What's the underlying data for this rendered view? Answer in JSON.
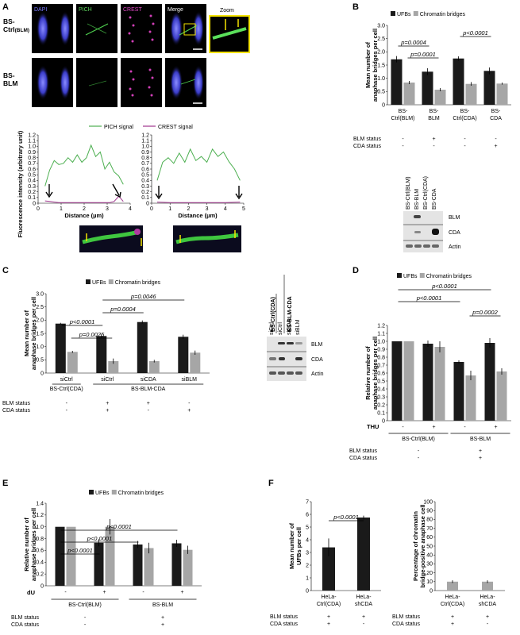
{
  "panels": {
    "A": {
      "letter": "A"
    },
    "B": {
      "letter": "B"
    },
    "C": {
      "letter": "C"
    },
    "D": {
      "letter": "D"
    },
    "E": {
      "letter": "E"
    },
    "F": {
      "letter": "F"
    }
  },
  "micro": {
    "channels": [
      "DAPI",
      "PICH",
      "CREST",
      "Merge",
      "Zoom"
    ],
    "rows": [
      {
        "label": "BS-",
        "sub": "Ctrl",
        "small": "(BLM)"
      },
      {
        "label": "BS-",
        "sub": "BLM",
        "small": ""
      }
    ]
  },
  "blots": {
    "B": {
      "lanes": [
        "BS-Ctrl(BLM)",
        "BS-BLM",
        "BS-Ctrl(CDA)",
        "BS-CDA"
      ],
      "bands": [
        "BLM",
        "CDA",
        "Actin"
      ]
    },
    "C": {
      "groups": [
        "BS-Ctrl(CDA)",
        "BS-BLM-CDA"
      ],
      "lanes": [
        "siCtrl",
        "siCtrl",
        "siCDA",
        "siBLM"
      ],
      "bands": [
        "BLM",
        "CDA",
        "Actin"
      ]
    }
  },
  "colors": {
    "ufb": "#1a1a1a",
    "chrom": "#a6a6a6",
    "pich": "#4caf50",
    "crest": "#a0368e"
  },
  "chart_data": [
    {
      "id": "A-left",
      "type": "line",
      "legend": [
        "PICH signal",
        "CREST signal"
      ],
      "xlabel": "Distance (µm)",
      "ylabel": "Fluorescence intensity (arbitrary unit)",
      "xlim": [
        0,
        4
      ],
      "ylim": [
        0,
        1.2
      ],
      "xticks": [
        "0",
        "1",
        "2",
        "3",
        "4"
      ],
      "yticks": [
        "0",
        "0.1",
        "0.2",
        "0.3",
        "0.4",
        "0.5",
        "0.6",
        "0.7",
        "0.8",
        "0.9",
        "1.0",
        "1.1",
        "1.2"
      ],
      "series": [
        {
          "name": "PICH signal",
          "x": [
            0.3,
            0.5,
            0.7,
            0.9,
            1.1,
            1.3,
            1.5,
            1.7,
            1.9,
            2.1,
            2.3,
            2.5,
            2.7,
            2.9,
            3.1,
            3.3,
            3.5,
            3.7
          ],
          "y": [
            0.3,
            0.58,
            0.75,
            0.68,
            0.7,
            0.8,
            0.72,
            0.85,
            0.72,
            0.8,
            1.02,
            0.82,
            0.9,
            0.6,
            0.72,
            0.55,
            0.48,
            0.33
          ]
        },
        {
          "name": "CREST signal",
          "x": [
            0.3,
            0.5,
            0.7,
            0.9,
            3.1,
            3.3,
            3.5,
            3.6,
            3.7
          ],
          "y": [
            0.04,
            0.03,
            0.02,
            0.01,
            0.01,
            0.03,
            0.12,
            0.08,
            0.03
          ]
        }
      ]
    },
    {
      "id": "A-right",
      "type": "line",
      "xlabel": "Distance (µm)",
      "xlim": [
        0,
        5
      ],
      "ylim": [
        0,
        1.2
      ],
      "xticks": [
        "0",
        "1",
        "2",
        "3",
        "4",
        "5"
      ],
      "yticks": [
        "0",
        "0.1",
        "0.2",
        "0.3",
        "0.4",
        "0.5",
        "0.6",
        "0.7",
        "0.8",
        "0.9",
        "1.0",
        "1.1",
        "1.2"
      ],
      "series": [
        {
          "name": "PICH signal",
          "x": [
            0.3,
            0.6,
            0.9,
            1.2,
            1.5,
            1.8,
            2.1,
            2.4,
            2.7,
            3.0,
            3.3,
            3.6,
            3.9,
            4.2,
            4.5,
            4.8
          ],
          "y": [
            0.4,
            0.72,
            0.8,
            0.7,
            0.88,
            0.72,
            0.95,
            0.75,
            0.82,
            0.72,
            0.95,
            0.82,
            0.9,
            0.73,
            0.6,
            0.4
          ]
        },
        {
          "name": "CREST signal",
          "x": [
            0.3,
            1,
            2,
            3,
            4,
            4.8
          ],
          "y": [
            0.02,
            0.01,
            0.01,
            0.01,
            0.01,
            0.02
          ]
        }
      ]
    },
    {
      "id": "B",
      "type": "bar",
      "legend": [
        "UFBs",
        "Chromatin bridges"
      ],
      "ylabel": "Mean number of anaphase bridges per cell",
      "ylim": [
        0,
        3
      ],
      "yticks": [
        "0",
        "0.5",
        "1.0",
        "1.5",
        "2.0",
        "2.5",
        "3.0"
      ],
      "categories": [
        [
          "BS-",
          "Ctrl(BLM)"
        ],
        [
          "BS-",
          "BLM"
        ],
        [
          "BS-",
          "Ctrl(CDA)"
        ],
        [
          "BS-",
          "CDA"
        ]
      ],
      "series": [
        {
          "name": "UFBs",
          "values": [
            1.72,
            1.25,
            1.75,
            1.28
          ],
          "errors": [
            0.12,
            0.13,
            0.08,
            0.13
          ]
        },
        {
          "name": "Chromatin bridges",
          "values": [
            0.84,
            0.57,
            0.79,
            0.8
          ],
          "errors": [
            0.06,
            0.06,
            0.07,
            0.04
          ]
        }
      ],
      "pvalues": [
        "p=0.0004",
        "p=0.0001",
        "p<0.0001"
      ],
      "status_rows": [
        {
          "label": "BLM status",
          "values": [
            "-",
            "+",
            "-",
            "-"
          ]
        },
        {
          "label": "CDA status",
          "values": [
            "-",
            "-",
            "-",
            "+"
          ]
        }
      ]
    },
    {
      "id": "C",
      "type": "bar",
      "legend": [
        "UFBs",
        "Chromatin bridges"
      ],
      "ylabel": "Mean number of anaphase bridges per cell",
      "ylim": [
        0,
        3
      ],
      "yticks": [
        "0",
        "0.5",
        "1.0",
        "1.5",
        "2.0",
        "2.5",
        "3.0"
      ],
      "categories": [
        "siCtrl",
        "siCtrl",
        "siCDA",
        "siBLM"
      ],
      "groups": [
        "BS-Ctrl(CDA)",
        "BS-BLM-CDA"
      ],
      "series": [
        {
          "name": "UFBs",
          "values": [
            1.87,
            1.4,
            1.93,
            1.37
          ],
          "errors": [
            0.03,
            0.06,
            0.06,
            0.08
          ]
        },
        {
          "name": "Chromatin bridges",
          "values": [
            0.8,
            0.45,
            0.45,
            0.77
          ],
          "errors": [
            0.04,
            0.1,
            0.05,
            0.08
          ]
        }
      ],
      "pvalues": [
        "p=0.0046",
        "p=0.0004",
        "p<0.0001",
        "p=0.0025"
      ],
      "status_rows": [
        {
          "label": "BLM status",
          "values": [
            "-",
            "+",
            "+",
            "-"
          ]
        },
        {
          "label": "CDA status",
          "values": [
            "-",
            "+",
            "-",
            "+"
          ]
        }
      ]
    },
    {
      "id": "D",
      "type": "bar",
      "legend": [
        "UFBs",
        "Chromatin bridges"
      ],
      "ylabel": "Relative number of anaphase bridges per cell",
      "ylim": [
        0,
        1.2
      ],
      "yticks": [
        "0",
        "0.1",
        "0.2",
        "0.3",
        "0.4",
        "0.5",
        "0.6",
        "0.7",
        "0.8",
        "0.9",
        "1.0",
        "1.1",
        "1.2"
      ],
      "categories": [
        "-",
        "+",
        "-",
        "+"
      ],
      "treatment_label": "THU",
      "groups": [
        "BS-Ctrl(BLM)",
        "BS-BLM"
      ],
      "series": [
        {
          "name": "UFBs",
          "values": [
            1.0,
            0.97,
            0.74,
            0.98
          ],
          "errors": [
            0.0,
            0.04,
            0.02,
            0.06
          ]
        },
        {
          "name": "Chromatin bridges",
          "values": [
            1.0,
            0.93,
            0.57,
            0.62
          ],
          "errors": [
            0.0,
            0.07,
            0.06,
            0.04
          ]
        }
      ],
      "pvalues": [
        "p<0.0001",
        "p<0.0001",
        "p=0.0002"
      ],
      "status_rows": [
        {
          "label": "BLM status",
          "values": [
            "-",
            "+"
          ]
        },
        {
          "label": "CDA status",
          "values": [
            "-",
            "+"
          ]
        }
      ]
    },
    {
      "id": "E",
      "type": "bar",
      "legend": [
        "UFBs",
        "Chromatin bridges"
      ],
      "ylabel": "Relative number of anaphase bridges per cell",
      "ylim": [
        0,
        1.4
      ],
      "yticks": [
        "0",
        "0.2",
        "0.4",
        "0.6",
        "0.8",
        "1.0",
        "1.2",
        "1.4"
      ],
      "categories": [
        "-",
        "+",
        "-",
        "+"
      ],
      "treatment_label": "dU",
      "groups": [
        "BS-Ctrl(BLM)",
        "BS-BLM"
      ],
      "series": [
        {
          "name": "UFBs",
          "values": [
            1.0,
            0.73,
            0.7,
            0.72
          ],
          "errors": [
            0.0,
            0.06,
            0.06,
            0.06
          ]
        },
        {
          "name": "Chromatin bridges",
          "values": [
            1.0,
            1.0,
            0.64,
            0.61
          ],
          "errors": [
            0.0,
            0.13,
            0.09,
            0.07
          ]
        }
      ],
      "pvalues": [
        "p<0.0001",
        "p<0.0001",
        "p<0.0001"
      ],
      "status_rows": [
        {
          "label": "BLM status",
          "values": [
            "-",
            "+"
          ]
        },
        {
          "label": "CDA status",
          "values": [
            "-",
            "+"
          ]
        }
      ]
    },
    {
      "id": "F-left",
      "type": "bar",
      "ylabel": "Mean number of UFBs per cell",
      "ylim": [
        0,
        7
      ],
      "yticks": [
        "0",
        "1",
        "2",
        "3",
        "4",
        "5",
        "6",
        "7"
      ],
      "categories": [
        [
          "HeLa-",
          "Ctrl(CDA)"
        ],
        [
          "HeLa-",
          "shCDA"
        ]
      ],
      "series": [
        {
          "name": "UFBs",
          "values": [
            3.4,
            5.75
          ],
          "errors": [
            0.7,
            0.15
          ]
        }
      ],
      "pvalues": [
        "p<0.0001"
      ],
      "status_rows": [
        {
          "label": "BLM status",
          "values": [
            "+",
            "+"
          ]
        },
        {
          "label": "CDA status",
          "values": [
            "+",
            "-"
          ]
        }
      ]
    },
    {
      "id": "F-right",
      "type": "bar",
      "ylabel": "Percentage of chromatin bridge-positive anaphase cell",
      "ylim": [
        0,
        100
      ],
      "yticks": [
        "0",
        "10",
        "20",
        "30",
        "40",
        "50",
        "60",
        "70",
        "80",
        "90",
        "100"
      ],
      "categories": [
        [
          "HeLa-",
          "Ctrl(CDA)"
        ],
        [
          "HeLa-",
          "shCDA"
        ]
      ],
      "series": [
        {
          "name": "Chromatin bridges",
          "values": [
            10,
            10
          ],
          "errors": [
            1.5,
            1.5
          ]
        }
      ],
      "status_rows": [
        {
          "label": "BLM status",
          "values": [
            "+",
            "+"
          ]
        },
        {
          "label": "CDA status",
          "values": [
            "+",
            "-"
          ]
        }
      ]
    }
  ]
}
